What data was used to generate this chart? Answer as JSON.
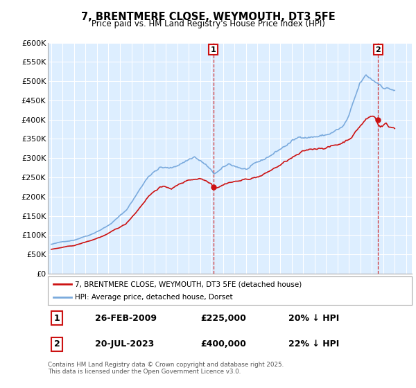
{
  "title": "7, BRENTMERE CLOSE, WEYMOUTH, DT3 5FE",
  "subtitle": "Price paid vs. HM Land Registry's House Price Index (HPI)",
  "background_color": "#ffffff",
  "plot_bg_color": "#ddeeff",
  "grid_color": "#ffffff",
  "ylim": [
    0,
    600000
  ],
  "yticks": [
    0,
    50000,
    100000,
    150000,
    200000,
    250000,
    300000,
    350000,
    400000,
    450000,
    500000,
    550000,
    600000
  ],
  "ytick_labels": [
    "£0",
    "£50K",
    "£100K",
    "£150K",
    "£200K",
    "£250K",
    "£300K",
    "£350K",
    "£400K",
    "£450K",
    "£500K",
    "£550K",
    "£600K"
  ],
  "xlim_start": 1994.7,
  "xlim_end": 2026.5,
  "sale1_x": 2009.15,
  "sale1_y": 225000,
  "sale1_label": "1",
  "sale1_date": "26-FEB-2009",
  "sale1_price": "£225,000",
  "sale1_hpi": "20% ↓ HPI",
  "sale2_x": 2023.55,
  "sale2_y": 400000,
  "sale2_label": "2",
  "sale2_date": "20-JUL-2023",
  "sale2_price": "£400,000",
  "sale2_hpi": "22% ↓ HPI",
  "line1_color": "#cc1111",
  "line2_color": "#7aaadd",
  "legend1_label": "7, BRENTMERE CLOSE, WEYMOUTH, DT3 5FE (detached house)",
  "legend2_label": "HPI: Average price, detached house, Dorset",
  "footer": "Contains HM Land Registry data © Crown copyright and database right 2025.\nThis data is licensed under the Open Government Licence v3.0."
}
